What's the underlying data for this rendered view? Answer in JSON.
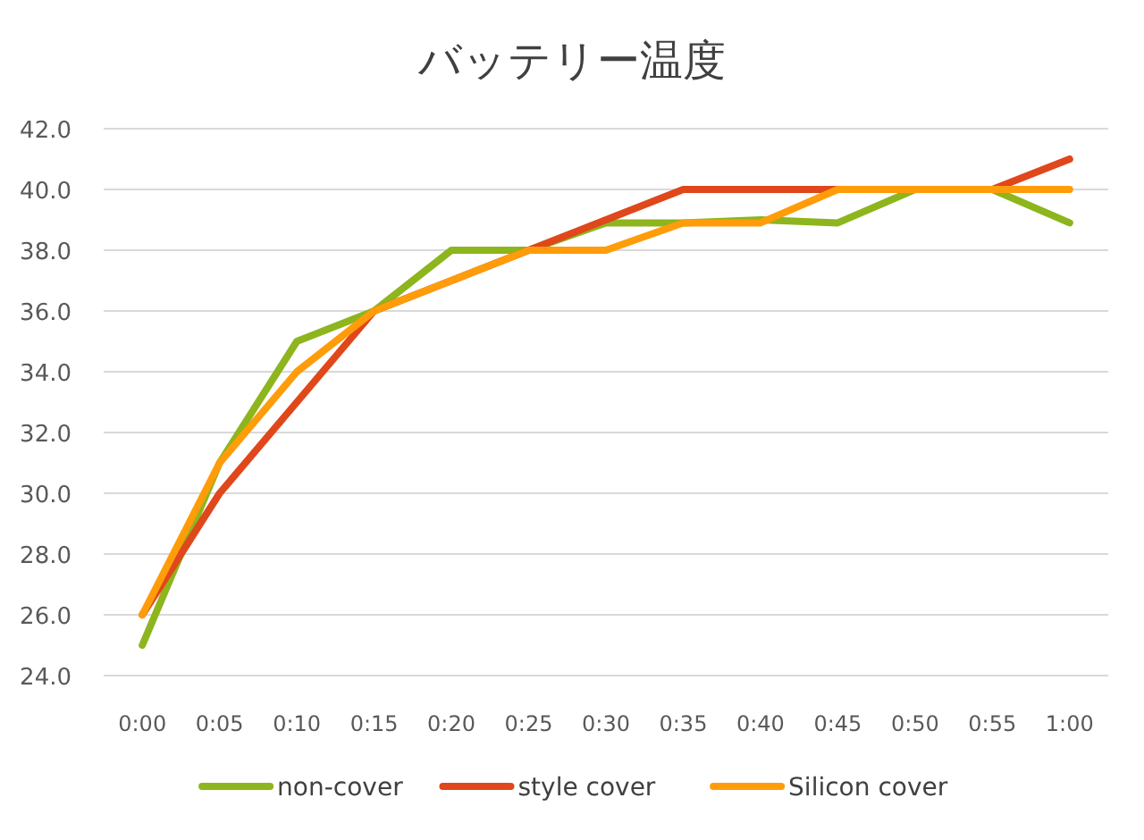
{
  "chart_data": {
    "type": "line",
    "title": "バッテリー温度",
    "categories": [
      "0:00",
      "0:05",
      "0:10",
      "0:15",
      "0:20",
      "0:25",
      "0:30",
      "0:35",
      "0:40",
      "0:45",
      "0:50",
      "0:55",
      "1:00"
    ],
    "series": [
      {
        "name": "non-cover",
        "color": "#8db51d",
        "values": [
          25,
          31,
          35,
          36,
          38,
          38,
          38.9,
          38.9,
          39,
          38.9,
          40,
          40,
          38.9
        ]
      },
      {
        "name": "style cover",
        "color": "#e0471a",
        "values": [
          26,
          30,
          33,
          36,
          37,
          38,
          39,
          40,
          40,
          40,
          40,
          40,
          41
        ]
      },
      {
        "name": "Silicon cover",
        "color": "#ff9c0a",
        "values": [
          26,
          31,
          34,
          36,
          37,
          38,
          38,
          38.9,
          38.9,
          40,
          40,
          40,
          40
        ]
      }
    ],
    "ylim": [
      24,
      42
    ],
    "yticks": [
      {
        "value": 24,
        "label": "24.0"
      },
      {
        "value": 26,
        "label": "26.0"
      },
      {
        "value": 28,
        "label": "28.0"
      },
      {
        "value": 30,
        "label": "30.0"
      },
      {
        "value": 32,
        "label": "32.0"
      },
      {
        "value": 34,
        "label": "34.0"
      },
      {
        "value": 36,
        "label": "36.0"
      },
      {
        "value": 38,
        "label": "38.0"
      },
      {
        "value": 40,
        "label": "40.0"
      },
      {
        "value": 42,
        "label": "42.0"
      }
    ],
    "grid": "y",
    "legend": "bottom"
  }
}
